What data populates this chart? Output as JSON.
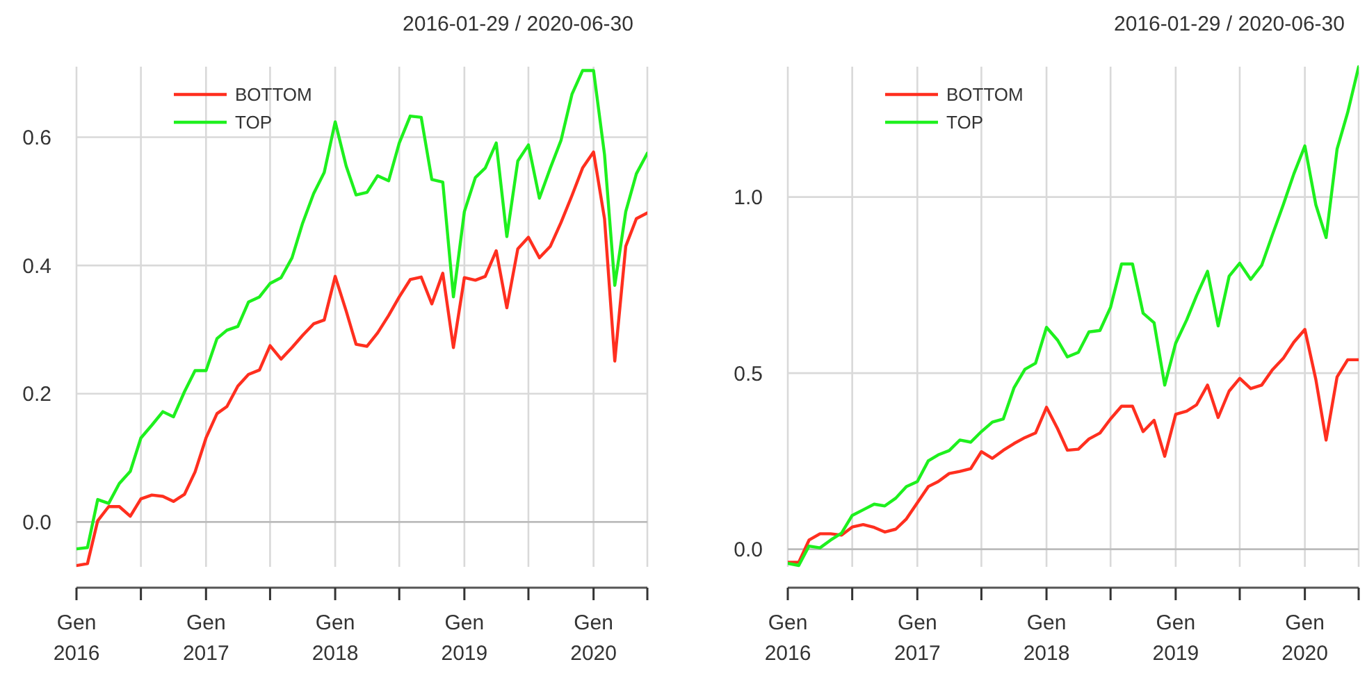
{
  "chart_data": [
    {
      "type": "line",
      "title": "2016-01-29 / 2020-06-30",
      "x": [
        "2016-01",
        "2016-02",
        "2016-03",
        "2016-04",
        "2016-05",
        "2016-06",
        "2016-07",
        "2016-08",
        "2016-09",
        "2016-10",
        "2016-11",
        "2016-12",
        "2017-01",
        "2017-02",
        "2017-03",
        "2017-04",
        "2017-05",
        "2017-06",
        "2017-07",
        "2017-08",
        "2017-09",
        "2017-10",
        "2017-11",
        "2017-12",
        "2018-01",
        "2018-02",
        "2018-03",
        "2018-04",
        "2018-05",
        "2018-06",
        "2018-07",
        "2018-08",
        "2018-09",
        "2018-10",
        "2018-11",
        "2018-12",
        "2019-01",
        "2019-02",
        "2019-03",
        "2019-04",
        "2019-05",
        "2019-06",
        "2019-07",
        "2019-08",
        "2019-09",
        "2019-10",
        "2019-11",
        "2019-12",
        "2020-01",
        "2020-02",
        "2020-03",
        "2020-04",
        "2020-05",
        "2020-06"
      ],
      "series": [
        {
          "name": "BOTTOM",
          "color": "#ff2f1f",
          "values": [
            -0.068,
            -0.065,
            0.002,
            0.024,
            0.024,
            0.009,
            0.036,
            0.042,
            0.04,
            0.032,
            0.043,
            0.078,
            0.131,
            0.169,
            0.18,
            0.212,
            0.23,
            0.237,
            0.275,
            0.254,
            0.272,
            0.291,
            0.309,
            0.315,
            0.383,
            0.329,
            0.277,
            0.274,
            0.295,
            0.322,
            0.351,
            0.378,
            0.382,
            0.34,
            0.388,
            0.272,
            0.381,
            0.377,
            0.383,
            0.423,
            0.334,
            0.426,
            0.444,
            0.412,
            0.43,
            0.467,
            0.509,
            0.552,
            0.577,
            0.473,
            0.251,
            0.43,
            0.473,
            0.482
          ]
        },
        {
          "name": "TOP",
          "color": "#1ef01e",
          "values": [
            -0.042,
            -0.04,
            0.035,
            0.029,
            0.06,
            0.079,
            0.131,
            0.151,
            0.172,
            0.164,
            0.203,
            0.236,
            0.236,
            0.286,
            0.299,
            0.305,
            0.343,
            0.351,
            0.372,
            0.381,
            0.412,
            0.466,
            0.512,
            0.545,
            0.624,
            0.555,
            0.51,
            0.514,
            0.54,
            0.532,
            0.591,
            0.633,
            0.631,
            0.534,
            0.53,
            0.351,
            0.484,
            0.537,
            0.552,
            0.591,
            0.445,
            0.563,
            0.588,
            0.505,
            0.552,
            0.595,
            0.667,
            0.704,
            0.704,
            0.573,
            0.369,
            0.484,
            0.543,
            0.575
          ]
        }
      ],
      "xlim": [
        "2016-01",
        "2020-06"
      ],
      "xticks": [
        {
          "value": "2016-01",
          "label": "Gen 2016"
        },
        {
          "value": "2016-07",
          "label": null
        },
        {
          "value": "2017-01",
          "label": "Gen 2017"
        },
        {
          "value": "2017-07",
          "label": null
        },
        {
          "value": "2018-01",
          "label": "Gen 2018"
        },
        {
          "value": "2018-07",
          "label": null
        },
        {
          "value": "2019-01",
          "label": "Gen 2019"
        },
        {
          "value": "2019-07",
          "label": null
        },
        {
          "value": "2020-01",
          "label": "Gen 2020"
        },
        {
          "value": "2020-06",
          "label": null
        }
      ],
      "ylim": [
        -0.07,
        0.71
      ],
      "yticks": [
        {
          "value": 0,
          "label": "0.0"
        },
        {
          "value": 0.2,
          "label": "0.2"
        },
        {
          "value": 0.4,
          "label": "0.4"
        },
        {
          "value": 0.6,
          "label": "0.6"
        }
      ],
      "grid": true,
      "legend": "top left"
    },
    {
      "type": "line",
      "title": "2016-01-29 / 2020-06-30",
      "x": [
        "2016-01",
        "2016-02",
        "2016-03",
        "2016-04",
        "2016-05",
        "2016-06",
        "2016-07",
        "2016-08",
        "2016-09",
        "2016-10",
        "2016-11",
        "2016-12",
        "2017-01",
        "2017-02",
        "2017-03",
        "2017-04",
        "2017-05",
        "2017-06",
        "2017-07",
        "2017-08",
        "2017-09",
        "2017-10",
        "2017-11",
        "2017-12",
        "2018-01",
        "2018-02",
        "2018-03",
        "2018-04",
        "2018-05",
        "2018-06",
        "2018-07",
        "2018-08",
        "2018-09",
        "2018-10",
        "2018-11",
        "2018-12",
        "2019-01",
        "2019-02",
        "2019-03",
        "2019-04",
        "2019-05",
        "2019-06",
        "2019-07",
        "2019-08",
        "2019-09",
        "2019-10",
        "2019-11",
        "2019-12",
        "2020-01",
        "2020-02",
        "2020-03",
        "2020-04",
        "2020-05",
        "2020-06"
      ],
      "series": [
        {
          "name": "BOTTOM",
          "color": "#ff2f1f",
          "values": [
            -0.037,
            -0.037,
            0.026,
            0.044,
            0.044,
            0.04,
            0.063,
            0.07,
            0.062,
            0.049,
            0.057,
            0.086,
            0.132,
            0.178,
            0.192,
            0.215,
            0.221,
            0.229,
            0.277,
            0.258,
            0.281,
            0.3,
            0.317,
            0.33,
            0.403,
            0.343,
            0.281,
            0.284,
            0.313,
            0.33,
            0.37,
            0.406,
            0.406,
            0.334,
            0.366,
            0.264,
            0.383,
            0.392,
            0.41,
            0.466,
            0.374,
            0.449,
            0.485,
            0.456,
            0.466,
            0.509,
            0.542,
            0.588,
            0.624,
            0.482,
            0.31,
            0.489,
            0.538,
            0.538
          ]
        },
        {
          "name": "TOP",
          "color": "#1ef01e",
          "values": [
            -0.04,
            -0.046,
            0.009,
            0.004,
            0.026,
            0.046,
            0.096,
            0.112,
            0.128,
            0.123,
            0.145,
            0.178,
            0.192,
            0.251,
            0.268,
            0.28,
            0.31,
            0.304,
            0.334,
            0.361,
            0.37,
            0.458,
            0.511,
            0.528,
            0.63,
            0.594,
            0.546,
            0.559,
            0.617,
            0.621,
            0.687,
            0.81,
            0.81,
            0.67,
            0.643,
            0.466,
            0.585,
            0.651,
            0.72,
            0.789,
            0.634,
            0.775,
            0.812,
            0.766,
            0.806,
            0.892,
            0.978,
            1.066,
            1.145,
            0.978,
            0.885,
            1.136,
            1.24,
            1.37
          ]
        }
      ],
      "xlim": [
        "2016-01",
        "2020-06"
      ],
      "xticks": [
        {
          "value": "2016-01",
          "label": "Gen 2016"
        },
        {
          "value": "2016-07",
          "label": null
        },
        {
          "value": "2017-01",
          "label": "Gen 2017"
        },
        {
          "value": "2017-07",
          "label": null
        },
        {
          "value": "2018-01",
          "label": "Gen 2018"
        },
        {
          "value": "2018-07",
          "label": null
        },
        {
          "value": "2019-01",
          "label": "Gen 2019"
        },
        {
          "value": "2019-07",
          "label": null
        },
        {
          "value": "2020-01",
          "label": "Gen 2020"
        },
        {
          "value": "2020-06",
          "label": null
        }
      ],
      "ylim": [
        -0.05,
        1.37
      ],
      "yticks": [
        {
          "value": 0,
          "label": "0.0"
        },
        {
          "value": 0.5,
          "label": "0.5"
        },
        {
          "value": 1,
          "label": "1.0"
        }
      ],
      "grid": true,
      "legend": "top left"
    }
  ]
}
